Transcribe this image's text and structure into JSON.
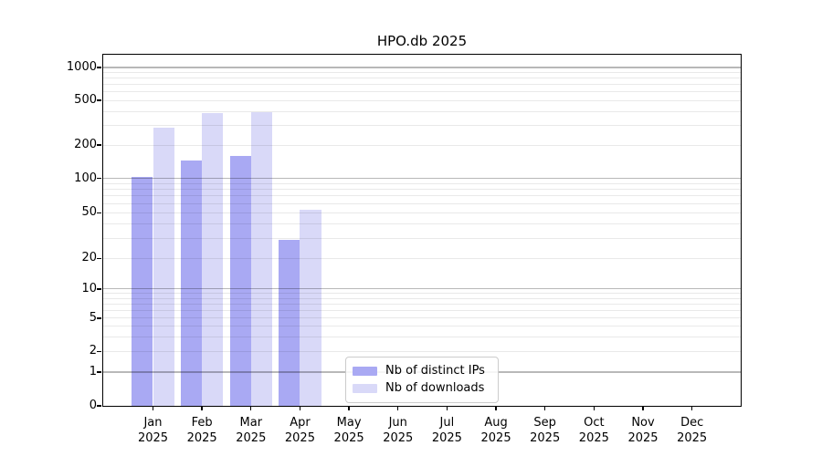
{
  "chart_data": {
    "type": "bar",
    "title": "HPO.db 2025",
    "categories": [
      "Jan",
      "Feb",
      "Mar",
      "Apr",
      "May",
      "Jun",
      "Jul",
      "Aug",
      "Sep",
      "Oct",
      "Nov",
      "Dec"
    ],
    "year_label": "2025",
    "series": [
      {
        "name": "Nb of distinct IPs",
        "color": "#a9a9f3",
        "values": [
          104,
          145,
          160,
          29,
          0,
          0,
          0,
          0,
          0,
          0,
          0,
          0
        ]
      },
      {
        "name": "Nb of downloads",
        "color": "#d9d9f8",
        "values": [
          285,
          385,
          390,
          53,
          0,
          0,
          0,
          0,
          0,
          0,
          0,
          0
        ]
      }
    ],
    "y_ticks": [
      0,
      1,
      2,
      5,
      10,
      20,
      50,
      100,
      200,
      500,
      1000
    ],
    "y_major_gridlines": [
      1,
      10,
      100,
      1000
    ],
    "y_minor_gridlines": [
      2,
      3,
      4,
      5,
      6,
      7,
      8,
      9,
      20,
      30,
      40,
      50,
      60,
      70,
      80,
      90,
      200,
      300,
      400,
      500,
      600,
      700,
      800,
      900
    ],
    "ylim": [
      0,
      1300
    ],
    "scale": "symlog-like (linear 0-1, log above)",
    "grid": true,
    "legend_position": "lower center inside plot"
  }
}
